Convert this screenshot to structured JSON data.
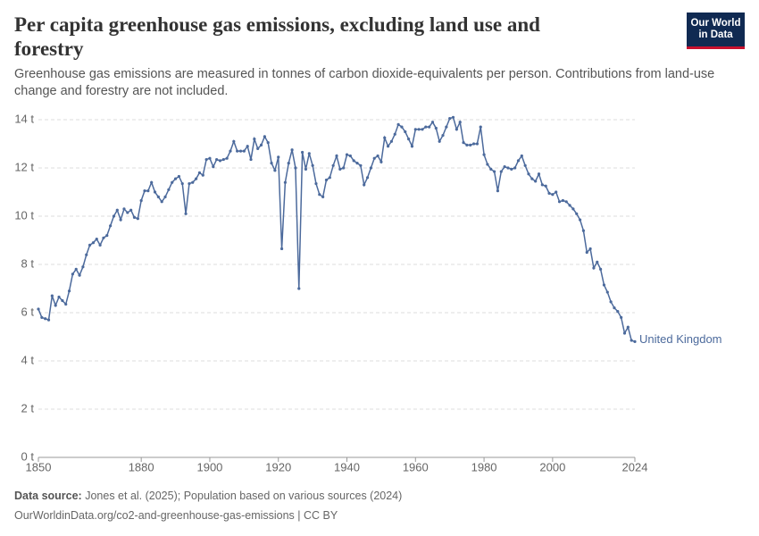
{
  "chart_data": {
    "type": "line",
    "title": "Per capita greenhouse gas emissions, excluding land use and forestry",
    "subtitle": "Greenhouse gas emissions are measured in tonnes of carbon dioxide-equivalents per person. Contributions from land-use change and forestry are not included.",
    "logo": [
      "Our World",
      "in Data"
    ],
    "source_label": "Data source:",
    "source": "Jones et al. (2025); Population based on various sources (2024)",
    "footer": "OurWorldinData.org/co2-and-greenhouse-gas-emissions | CC BY",
    "x": [
      1850,
      1851,
      1852,
      1853,
      1854,
      1855,
      1856,
      1857,
      1858,
      1859,
      1860,
      1861,
      1862,
      1863,
      1864,
      1865,
      1866,
      1867,
      1868,
      1869,
      1870,
      1871,
      1872,
      1873,
      1874,
      1875,
      1876,
      1877,
      1878,
      1879,
      1880,
      1881,
      1882,
      1883,
      1884,
      1885,
      1886,
      1887,
      1888,
      1889,
      1890,
      1891,
      1892,
      1893,
      1894,
      1895,
      1896,
      1897,
      1898,
      1899,
      1900,
      1901,
      1902,
      1903,
      1904,
      1905,
      1906,
      1907,
      1908,
      1909,
      1910,
      1911,
      1912,
      1913,
      1914,
      1915,
      1916,
      1917,
      1918,
      1919,
      1920,
      1921,
      1922,
      1923,
      1924,
      1925,
      1926,
      1927,
      1928,
      1929,
      1930,
      1931,
      1932,
      1933,
      1934,
      1935,
      1936,
      1937,
      1938,
      1939,
      1940,
      1941,
      1942,
      1943,
      1944,
      1945,
      1946,
      1947,
      1948,
      1949,
      1950,
      1951,
      1952,
      1953,
      1954,
      1955,
      1956,
      1957,
      1958,
      1959,
      1960,
      1961,
      1962,
      1963,
      1964,
      1965,
      1966,
      1967,
      1968,
      1969,
      1970,
      1971,
      1972,
      1973,
      1974,
      1975,
      1976,
      1977,
      1978,
      1979,
      1980,
      1981,
      1982,
      1983,
      1984,
      1985,
      1986,
      1987,
      1988,
      1989,
      1990,
      1991,
      1992,
      1993,
      1994,
      1995,
      1996,
      1997,
      1998,
      1999,
      2000,
      2001,
      2002,
      2003,
      2004,
      2005,
      2006,
      2007,
      2008,
      2009,
      2010,
      2011,
      2012,
      2013,
      2014,
      2015,
      2016,
      2017,
      2018,
      2019,
      2020,
      2021,
      2022,
      2023,
      2024
    ],
    "series": [
      {
        "name": "United Kingdom",
        "color": "#4c6a9c",
        "values": [
          6.15,
          5.8,
          5.75,
          5.7,
          6.7,
          6.3,
          6.65,
          6.5,
          6.35,
          6.9,
          7.6,
          7.8,
          7.55,
          7.9,
          8.4,
          8.8,
          8.9,
          9.05,
          8.8,
          9.1,
          9.2,
          9.6,
          10.0,
          10.25,
          9.85,
          10.3,
          10.15,
          10.25,
          9.95,
          9.9,
          10.65,
          11.05,
          11.05,
          11.4,
          11.0,
          10.8,
          10.6,
          10.8,
          11.1,
          11.4,
          11.55,
          11.65,
          11.35,
          10.1,
          11.35,
          11.4,
          11.55,
          11.8,
          11.7,
          12.35,
          12.4,
          12.05,
          12.35,
          12.3,
          12.35,
          12.4,
          12.7,
          13.1,
          12.7,
          12.7,
          12.7,
          12.9,
          12.35,
          13.2,
          12.8,
          12.95,
          13.3,
          13.05,
          12.2,
          11.9,
          12.45,
          8.65,
          11.4,
          12.2,
          12.75,
          12.0,
          7.0,
          12.65,
          11.95,
          12.6,
          12.1,
          11.35,
          10.9,
          10.8,
          11.5,
          11.6,
          12.1,
          12.5,
          11.95,
          12.0,
          12.55,
          12.5,
          12.3,
          12.2,
          12.1,
          11.3,
          11.6,
          12.0,
          12.4,
          12.5,
          12.25,
          13.25,
          12.9,
          13.1,
          13.4,
          13.8,
          13.7,
          13.5,
          13.2,
          12.9,
          13.6,
          13.6,
          13.6,
          13.7,
          13.7,
          13.9,
          13.65,
          13.1,
          13.35,
          13.7,
          14.05,
          14.1,
          13.6,
          13.9,
          13.05,
          12.95,
          12.95,
          13.0,
          13.0,
          13.7,
          12.55,
          12.15,
          11.95,
          11.85,
          11.05,
          11.85,
          12.05,
          12.0,
          11.95,
          12.0,
          12.3,
          12.5,
          12.1,
          11.75,
          11.55,
          11.45,
          11.75,
          11.3,
          11.25,
          10.95,
          10.9,
          11.0,
          10.6,
          10.65,
          10.6,
          10.45,
          10.3,
          10.1,
          9.85,
          9.4,
          8.5,
          8.65,
          7.85,
          8.1,
          7.8,
          7.15,
          6.85,
          6.45,
          6.2,
          6.05,
          5.8,
          5.15,
          5.4,
          4.85,
          4.8
        ]
      }
    ],
    "xlim": [
      1850,
      2024
    ],
    "xticks": [
      1850,
      1880,
      1900,
      1920,
      1940,
      1960,
      1980,
      2000,
      2024
    ],
    "ylim": [
      0,
      14
    ],
    "yticks": [
      {
        "value": 0,
        "label": "0 t"
      },
      {
        "value": 2,
        "label": "2 t"
      },
      {
        "value": 4,
        "label": "4 t"
      },
      {
        "value": 6,
        "label": "6 t"
      },
      {
        "value": 8,
        "label": "8 t"
      },
      {
        "value": 10,
        "label": "10 t"
      },
      {
        "value": 12,
        "label": "12 t"
      },
      {
        "value": 14,
        "label": "14 t"
      }
    ],
    "grid": true
  }
}
